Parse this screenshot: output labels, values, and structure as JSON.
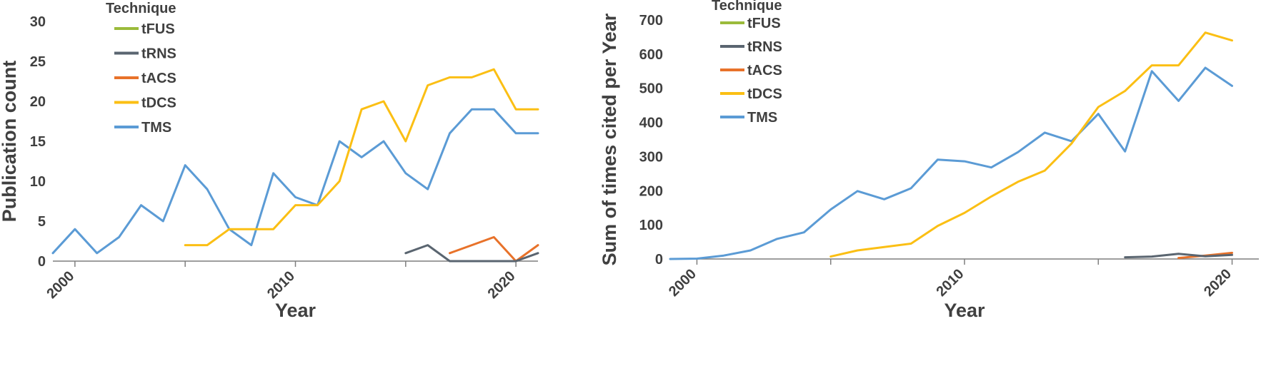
{
  "chart_data": [
    {
      "type": "line",
      "ylabel": "Publication count",
      "xlabel": "Year",
      "ylim": [
        0,
        30
      ],
      "yticks": [
        "0",
        "5",
        "10",
        "15",
        "20",
        "25",
        "30"
      ],
      "xlim": [
        1999,
        2021
      ],
      "xticks": [
        "2000",
        "2010",
        "2020"
      ],
      "grid": false,
      "legend": {
        "title": "Technique",
        "position": "top-left"
      },
      "series": [
        {
          "name": "tFUS",
          "color": "#9bbb3b",
          "x": [],
          "values": []
        },
        {
          "name": "tRNS",
          "color": "#5a6570",
          "x": [
            2015,
            2016,
            2017,
            2018,
            2019,
            2020,
            2021
          ],
          "values": [
            1,
            2,
            0,
            0,
            0,
            0,
            1
          ]
        },
        {
          "name": "tACS",
          "color": "#e8722a",
          "x": [
            2017,
            2018,
            2019,
            2020,
            2021
          ],
          "values": [
            1,
            2,
            3,
            0,
            2
          ]
        },
        {
          "name": "tDCS",
          "color": "#fbbf14",
          "x": [
            2005,
            2006,
            2007,
            2008,
            2009,
            2010,
            2011,
            2012,
            2013,
            2014,
            2015,
            2016,
            2017,
            2018,
            2019,
            2020,
            2021
          ],
          "values": [
            2,
            2,
            4,
            4,
            4,
            7,
            7,
            10,
            19,
            20,
            15,
            22,
            23,
            23,
            24,
            19,
            19
          ]
        },
        {
          "name": "TMS",
          "color": "#5b9bd5",
          "x": [
            1999,
            2000,
            2001,
            2002,
            2003,
            2004,
            2005,
            2006,
            2007,
            2008,
            2009,
            2010,
            2011,
            2012,
            2013,
            2014,
            2015,
            2016,
            2017,
            2018,
            2019,
            2020,
            2021
          ],
          "values": [
            1,
            4,
            1,
            3,
            7,
            5,
            12,
            9,
            4,
            2,
            11,
            8,
            7,
            15,
            13,
            15,
            11,
            9,
            16,
            19,
            19,
            16,
            16
          ]
        }
      ]
    },
    {
      "type": "line",
      "ylabel": "Sum of times cited per Year",
      "xlabel": "Year",
      "ylim": [
        0,
        700
      ],
      "yticks": [
        "0",
        "100",
        "200",
        "300",
        "400",
        "500",
        "600",
        "700"
      ],
      "xlim": [
        1999,
        2021
      ],
      "xticks": [
        "2000",
        "2010",
        "2020"
      ],
      "grid": false,
      "legend": {
        "title": "Technique",
        "position": "top-left"
      },
      "series": [
        {
          "name": "tFUS",
          "color": "#9bbb3b",
          "x": [],
          "values": []
        },
        {
          "name": "tRNS",
          "color": "#5a6570",
          "x": [
            2016,
            2017,
            2018,
            2019,
            2020
          ],
          "values": [
            5,
            7,
            15,
            8,
            12
          ]
        },
        {
          "name": "tACS",
          "color": "#e8722a",
          "x": [
            2018,
            2019,
            2020
          ],
          "values": [
            3,
            10,
            18
          ]
        },
        {
          "name": "tDCS",
          "color": "#fbbf14",
          "x": [
            2005,
            2006,
            2007,
            2008,
            2009,
            2010,
            2011,
            2012,
            2013,
            2014,
            2015,
            2016,
            2017,
            2018,
            2019,
            2020
          ],
          "values": [
            7,
            25,
            35,
            45,
            97,
            135,
            183,
            226,
            259,
            338,
            445,
            492,
            567,
            567,
            663,
            640
          ]
        },
        {
          "name": "TMS",
          "color": "#5b9bd5",
          "x": [
            1999,
            2000,
            2001,
            2002,
            2003,
            2004,
            2005,
            2006,
            2007,
            2008,
            2009,
            2010,
            2011,
            2012,
            2013,
            2014,
            2015,
            2016,
            2017,
            2018,
            2019,
            2020
          ],
          "values": [
            0,
            1,
            10,
            25,
            59,
            78,
            145,
            199,
            175,
            207,
            291,
            286,
            268,
            313,
            370,
            345,
            425,
            315,
            550,
            463,
            560,
            507
          ]
        }
      ]
    }
  ]
}
